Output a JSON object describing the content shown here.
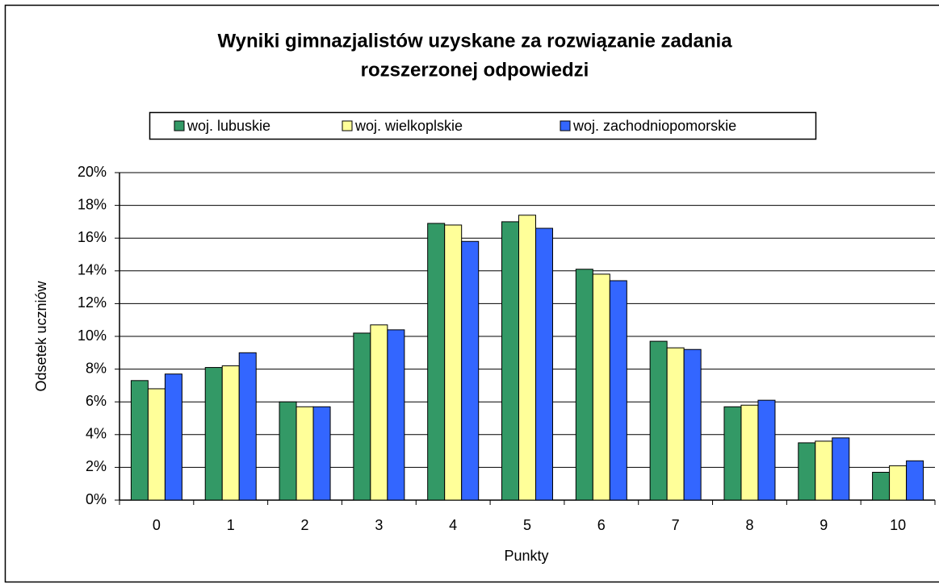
{
  "chart_data": {
    "type": "bar",
    "title": [
      "Wyniki gimnazjalistów uzyskane za rozwiązanie zadania",
      "rozszerzonej odpowiedzi"
    ],
    "x_label": "Punkty",
    "y_label": "Odsetek uczniów",
    "categories": [
      "0",
      "1",
      "2",
      "3",
      "4",
      "5",
      "6",
      "7",
      "8",
      "9",
      "10"
    ],
    "series": [
      {
        "name": "woj. lubuskie",
        "color": "#339966",
        "values": [
          7.3,
          8.1,
          6.0,
          10.2,
          16.9,
          17.0,
          14.1,
          9.7,
          5.7,
          3.5,
          1.7
        ]
      },
      {
        "name": "woj. wielkoplskie",
        "color": "#ffff99",
        "values": [
          6.8,
          8.2,
          5.7,
          10.7,
          16.8,
          17.4,
          13.8,
          9.3,
          5.8,
          3.6,
          2.1
        ]
      },
      {
        "name": "woj. zachodniopomorskie",
        "color": "#3366ff",
        "values": [
          7.7,
          9.0,
          5.7,
          10.4,
          15.8,
          16.6,
          13.4,
          9.2,
          6.1,
          3.8,
          2.4
        ]
      }
    ],
    "ylim": [
      0,
      20
    ],
    "yticks": [
      {
        "value": 0,
        "label": "0%"
      },
      {
        "value": 2,
        "label": "2%"
      },
      {
        "value": 4,
        "label": "4%"
      },
      {
        "value": 6,
        "label": "6%"
      },
      {
        "value": 8,
        "label": "8%"
      },
      {
        "value": 10,
        "label": "10%"
      },
      {
        "value": 12,
        "label": "12%"
      },
      {
        "value": 14,
        "label": "14%"
      },
      {
        "value": 16,
        "label": "16%"
      },
      {
        "value": 18,
        "label": "18%"
      },
      {
        "value": 20,
        "label": "20%"
      }
    ],
    "grid": true,
    "legend": "top"
  }
}
